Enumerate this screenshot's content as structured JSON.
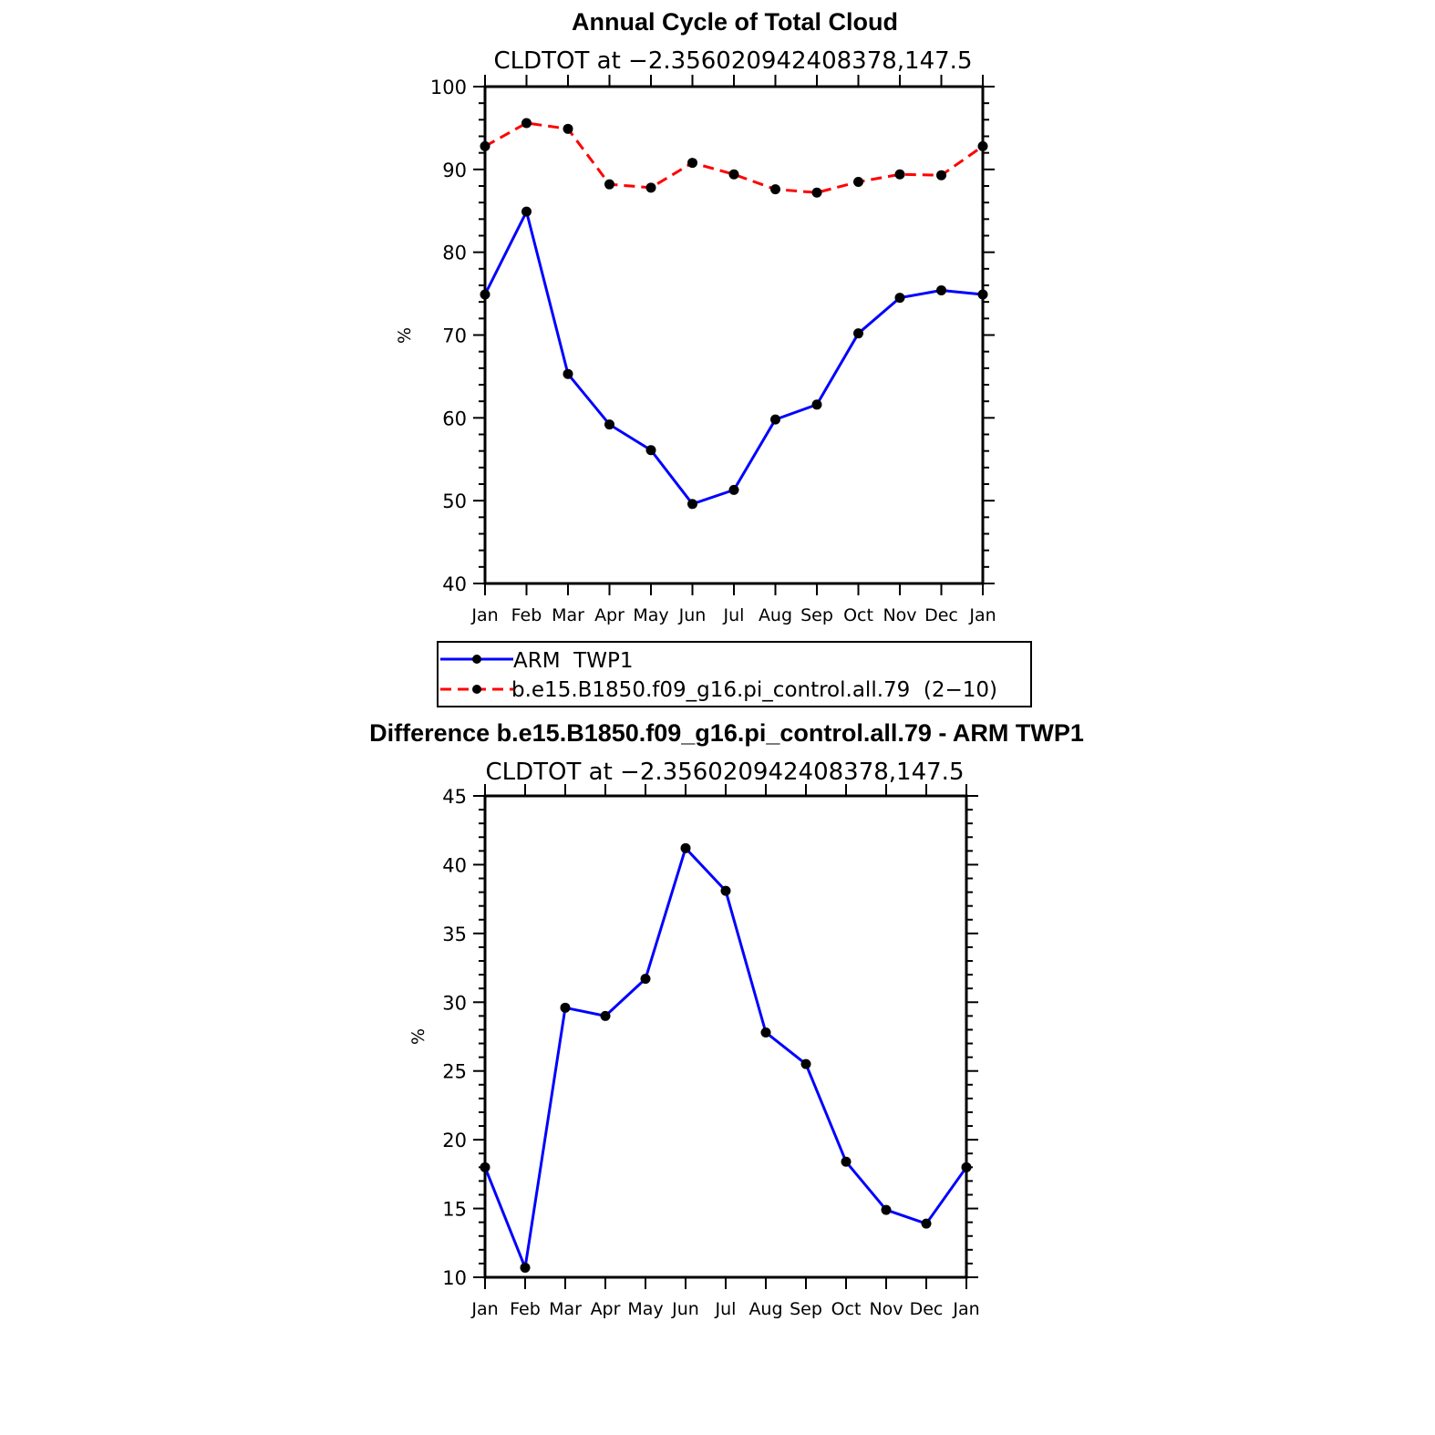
{
  "chart_data": [
    {
      "type": "line",
      "title": "Annual Cycle of Total Cloud",
      "subtitle": "CLDTOT at −2.356020942408378,147.5",
      "ylabel": "%",
      "xlabel": "",
      "categories": [
        "Jan",
        "Feb",
        "Mar",
        "Apr",
        "May",
        "Jun",
        "Jul",
        "Aug",
        "Sep",
        "Oct",
        "Nov",
        "Dec",
        "Jan"
      ],
      "ylim": [
        40,
        100
      ],
      "yticks": [
        40,
        50,
        60,
        70,
        80,
        90,
        100
      ],
      "grid": false,
      "legend_position": "bottom",
      "series": [
        {
          "name": "ARM  TWP1",
          "color": "#0000ff",
          "dash": "solid",
          "values": [
            74.9,
            84.9,
            65.3,
            59.2,
            56.1,
            49.6,
            51.3,
            59.8,
            61.6,
            70.2,
            74.5,
            75.4,
            74.9
          ]
        },
        {
          "name": "b.e15.B1850.f09_g16.pi_control.all.79  (2−10)",
          "color": "#ff0000",
          "dash": "dashed",
          "values": [
            92.8,
            95.6,
            94.9,
            88.2,
            87.8,
            90.8,
            89.4,
            87.6,
            87.2,
            88.5,
            89.4,
            89.3,
            92.8
          ]
        }
      ]
    },
    {
      "type": "line",
      "title": "Difference b.e15.B1850.f09_g16.pi_control.all.79 - ARM TWP1",
      "subtitle": "CLDTOT at −2.356020942408378,147.5",
      "ylabel": "%",
      "xlabel": "",
      "categories": [
        "Jan",
        "Feb",
        "Mar",
        "Apr",
        "May",
        "Jun",
        "Jul",
        "Aug",
        "Sep",
        "Oct",
        "Nov",
        "Dec",
        "Jan"
      ],
      "ylim": [
        10,
        45
      ],
      "yticks": [
        10,
        15,
        20,
        25,
        30,
        35,
        40,
        45
      ],
      "grid": false,
      "series": [
        {
          "color": "#0000ff",
          "dash": "solid",
          "values": [
            18.0,
            10.7,
            29.6,
            29.0,
            31.7,
            41.2,
            38.1,
            27.8,
            25.5,
            18.4,
            14.9,
            13.9,
            18.0
          ]
        }
      ]
    }
  ]
}
